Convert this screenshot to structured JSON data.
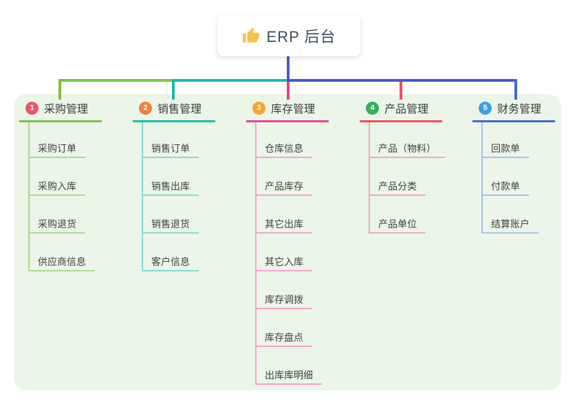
{
  "root": {
    "icon": "thumbs-up-icon",
    "label": "ERP 后台"
  },
  "colors": {
    "panel_bg": "#EBF6E9",
    "root_connector": "#4857CC",
    "root_icon_fill": "#F7C245",
    "bus_segments": [
      "#7CC242",
      "#17BCA9",
      "#4857CC"
    ]
  },
  "branches": [
    {
      "badge": "1",
      "badge_color": "#F0546D",
      "label": "采购管理",
      "line_color": "#7CC242",
      "child_line_color": "#ACD98A",
      "children": [
        "采购订单",
        "采购入库",
        "采购退货",
        "供应商信息"
      ]
    },
    {
      "badge": "2",
      "badge_color": "#F27E3C",
      "label": "销售管理",
      "line_color": "#17BCA9",
      "child_line_color": "#83DACE",
      "children": [
        "销售订单",
        "销售出库",
        "销售退货",
        "客户信息"
      ]
    },
    {
      "badge": "3",
      "badge_color": "#F8A42D",
      "label": "库存管理",
      "line_color": "#EC3C95",
      "child_line_color": "#F4A3CD",
      "children": [
        "仓库信息",
        "产品库存",
        "其它出库",
        "其它入库",
        "库存调拨",
        "库存盘点",
        "出库库明细"
      ]
    },
    {
      "badge": "4",
      "badge_color": "#33AF5B",
      "label": "产品管理",
      "line_color": "#F5495B",
      "child_line_color": "#F9A7AE",
      "children": [
        "产品（物料）",
        "产品分类",
        "产品单位"
      ]
    },
    {
      "badge": "5",
      "badge_color": "#3BA1DE",
      "label": "财务管理",
      "line_color": "#3F68D4",
      "child_line_color": "#A8C0EC",
      "children": [
        "回款单",
        "付款单",
        "结算账户"
      ]
    }
  ]
}
